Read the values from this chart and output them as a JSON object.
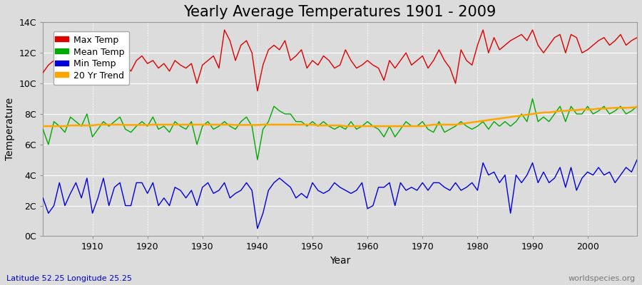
{
  "title": "Yearly Average Temperatures 1901 - 2009",
  "xlabel": "Year",
  "ylabel": "Temperature",
  "subtitle_lat": "Latitude 52.25 Longitude 25.25",
  "watermark": "worldspecies.org",
  "legend": [
    "Max Temp",
    "Mean Temp",
    "Min Temp",
    "20 Yr Trend"
  ],
  "colors": {
    "max": "#DD0000",
    "mean": "#00AA00",
    "min": "#0000DD",
    "trend": "#FFA500"
  },
  "ylim": [
    0,
    14
  ],
  "yticks": [
    0,
    2,
    4,
    6,
    8,
    10,
    12,
    14
  ],
  "ytick_labels": [
    "0C",
    "2C",
    "4C",
    "6C",
    "8C",
    "10C",
    "12C",
    "14C"
  ],
  "xlim": [
    1901,
    2009
  ],
  "years": [
    1901,
    1902,
    1903,
    1904,
    1905,
    1906,
    1907,
    1908,
    1909,
    1910,
    1911,
    1912,
    1913,
    1914,
    1915,
    1916,
    1917,
    1918,
    1919,
    1920,
    1921,
    1922,
    1923,
    1924,
    1925,
    1926,
    1927,
    1928,
    1929,
    1930,
    1931,
    1932,
    1933,
    1934,
    1935,
    1936,
    1937,
    1938,
    1939,
    1940,
    1941,
    1942,
    1943,
    1944,
    1945,
    1946,
    1947,
    1948,
    1949,
    1950,
    1951,
    1952,
    1953,
    1954,
    1955,
    1956,
    1957,
    1958,
    1959,
    1960,
    1961,
    1962,
    1963,
    1964,
    1965,
    1966,
    1967,
    1968,
    1969,
    1970,
    1971,
    1972,
    1973,
    1974,
    1975,
    1976,
    1977,
    1978,
    1979,
    1980,
    1981,
    1982,
    1983,
    1984,
    1985,
    1986,
    1987,
    1988,
    1989,
    1990,
    1991,
    1992,
    1993,
    1994,
    1995,
    1996,
    1997,
    1998,
    1999,
    2000,
    2001,
    2002,
    2003,
    2004,
    2005,
    2006,
    2007,
    2008,
    2009
  ],
  "max_temp": [
    10.7,
    11.2,
    11.5,
    10.8,
    11.0,
    11.8,
    11.3,
    11.6,
    12.7,
    10.2,
    11.8,
    12.2,
    11.5,
    11.2,
    11.5,
    11.2,
    10.8,
    11.5,
    11.8,
    11.3,
    11.5,
    11.0,
    11.3,
    10.8,
    11.5,
    11.2,
    11.0,
    11.3,
    10.0,
    11.2,
    11.5,
    11.8,
    11.0,
    13.5,
    12.8,
    11.5,
    12.5,
    12.8,
    12.0,
    9.5,
    11.2,
    12.2,
    12.5,
    12.2,
    12.8,
    11.5,
    11.8,
    12.2,
    11.0,
    11.5,
    11.2,
    11.8,
    11.5,
    11.0,
    11.2,
    12.2,
    11.5,
    11.0,
    11.2,
    11.5,
    11.2,
    11.0,
    10.2,
    11.5,
    11.0,
    11.5,
    12.0,
    11.2,
    11.5,
    11.8,
    11.0,
    11.5,
    12.2,
    11.5,
    11.0,
    10.0,
    12.2,
    11.5,
    11.2,
    12.5,
    13.5,
    12.0,
    13.0,
    12.2,
    12.5,
    12.8,
    13.0,
    13.2,
    12.8,
    13.5,
    12.5,
    12.0,
    12.5,
    13.0,
    13.2,
    12.0,
    13.2,
    13.0,
    12.0,
    12.2,
    12.5,
    12.8,
    13.0,
    12.5,
    12.8,
    13.2,
    12.5,
    12.8,
    13.0
  ],
  "mean_temp": [
    7.0,
    6.0,
    7.5,
    7.2,
    6.8,
    7.8,
    7.5,
    7.2,
    8.0,
    6.5,
    7.0,
    7.5,
    7.2,
    7.5,
    7.8,
    7.0,
    6.8,
    7.2,
    7.5,
    7.2,
    7.8,
    7.0,
    7.2,
    6.8,
    7.5,
    7.2,
    7.0,
    7.5,
    6.0,
    7.2,
    7.5,
    7.0,
    7.2,
    7.5,
    7.2,
    7.0,
    7.5,
    7.8,
    7.2,
    5.0,
    7.0,
    7.5,
    8.5,
    8.2,
    8.0,
    8.0,
    7.5,
    7.5,
    7.2,
    7.5,
    7.2,
    7.5,
    7.2,
    7.0,
    7.2,
    7.0,
    7.5,
    7.0,
    7.2,
    7.5,
    7.2,
    7.0,
    6.5,
    7.2,
    6.5,
    7.0,
    7.5,
    7.2,
    7.2,
    7.5,
    7.0,
    6.8,
    7.5,
    6.8,
    7.0,
    7.2,
    7.5,
    7.2,
    7.0,
    7.2,
    7.5,
    7.0,
    7.5,
    7.2,
    7.5,
    7.2,
    7.5,
    8.0,
    7.5,
    9.0,
    7.5,
    7.8,
    7.5,
    8.0,
    8.5,
    7.5,
    8.5,
    8.0,
    8.0,
    8.5,
    8.0,
    8.2,
    8.5,
    8.0,
    8.2,
    8.5,
    8.0,
    8.2,
    8.5
  ],
  "min_temp": [
    2.5,
    1.5,
    2.0,
    3.5,
    2.0,
    2.8,
    3.5,
    2.5,
    3.8,
    1.5,
    2.5,
    3.8,
    2.0,
    3.2,
    3.5,
    2.0,
    2.0,
    3.5,
    3.5,
    2.8,
    3.5,
    2.0,
    2.5,
    2.0,
    3.2,
    3.0,
    2.5,
    3.0,
    2.0,
    3.2,
    3.5,
    2.8,
    3.0,
    3.5,
    2.5,
    2.8,
    3.0,
    3.5,
    3.0,
    0.5,
    1.5,
    3.0,
    3.5,
    3.8,
    3.5,
    3.2,
    2.5,
    2.8,
    2.5,
    3.5,
    3.0,
    2.8,
    3.0,
    3.5,
    3.2,
    3.0,
    2.8,
    3.0,
    3.5,
    1.8,
    2.0,
    3.2,
    3.2,
    3.5,
    2.0,
    3.5,
    3.0,
    3.2,
    3.0,
    3.5,
    3.0,
    3.5,
    3.5,
    3.2,
    3.0,
    3.5,
    3.0,
    3.2,
    3.5,
    3.0,
    4.8,
    4.0,
    4.2,
    3.5,
    4.0,
    1.5,
    4.0,
    3.5,
    4.0,
    4.8,
    3.5,
    4.2,
    3.5,
    3.8,
    4.5,
    3.2,
    4.5,
    3.0,
    3.8,
    4.2,
    4.0,
    4.5,
    4.0,
    4.2,
    3.5,
    4.0,
    4.5,
    4.2,
    5.0
  ],
  "trend": [
    7.2,
    7.2,
    7.2,
    7.2,
    7.2,
    7.25,
    7.25,
    7.25,
    7.25,
    7.25,
    7.3,
    7.3,
    7.3,
    7.3,
    7.3,
    7.28,
    7.28,
    7.28,
    7.28,
    7.28,
    7.3,
    7.3,
    7.3,
    7.3,
    7.3,
    7.3,
    7.3,
    7.3,
    7.3,
    7.3,
    7.3,
    7.3,
    7.3,
    7.3,
    7.3,
    7.28,
    7.28,
    7.28,
    7.28,
    7.28,
    7.3,
    7.3,
    7.3,
    7.3,
    7.3,
    7.3,
    7.3,
    7.3,
    7.3,
    7.3,
    7.25,
    7.25,
    7.25,
    7.25,
    7.25,
    7.2,
    7.2,
    7.2,
    7.2,
    7.2,
    7.2,
    7.2,
    7.2,
    7.2,
    7.2,
    7.2,
    7.2,
    7.2,
    7.2,
    7.2,
    7.25,
    7.3,
    7.3,
    7.3,
    7.3,
    7.3,
    7.35,
    7.4,
    7.45,
    7.5,
    7.55,
    7.6,
    7.65,
    7.7,
    7.75,
    7.8,
    7.85,
    7.9,
    7.95,
    8.0,
    8.05,
    8.1,
    8.1,
    8.15,
    8.2,
    8.2,
    8.25,
    8.25,
    8.3,
    8.3,
    8.3,
    8.35,
    8.35,
    8.38,
    8.4,
    8.4,
    8.4,
    8.42,
    8.45
  ],
  "fig_bg": "#DCDCDC",
  "plot_bg": "#DCDCDC",
  "grid_color": "#FFFFFF",
  "linewidth": 1.0,
  "title_fontsize": 15,
  "label_fontsize": 10,
  "tick_fontsize": 9,
  "figsize": [
    9.0,
    4.0
  ],
  "dpi": 100
}
